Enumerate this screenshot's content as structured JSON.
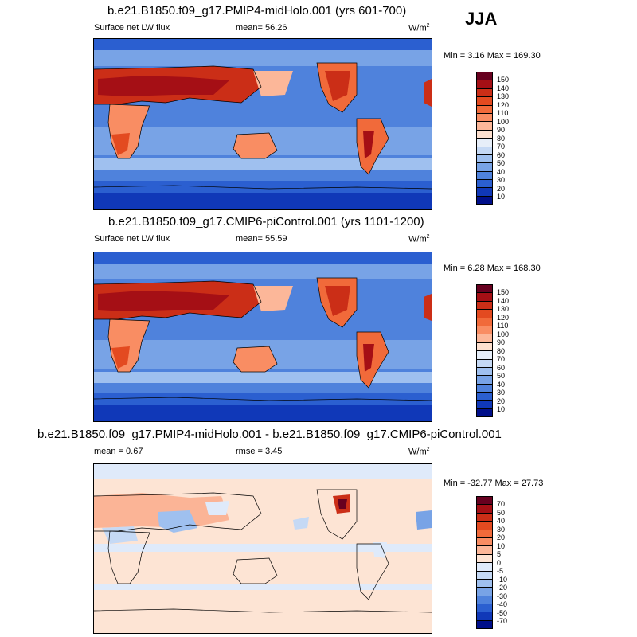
{
  "season": "JJA",
  "panels": [
    {
      "id": "midholo",
      "title": "b.e21.B1850.f09_g17.PMIP4-midHolo.001 (yrs 601-700)",
      "left_label": "Surface net LW flux",
      "center_label": "mean=  56.26",
      "units": "W/m",
      "units_sup": "2",
      "min_max": "Min =   3.16 Max = 169.30",
      "legend_levels": [
        "150",
        "140",
        "130",
        "120",
        "110",
        "100",
        "90",
        "80",
        "70",
        "60",
        "50",
        "40",
        "30",
        "20",
        "10"
      ]
    },
    {
      "id": "picontrol",
      "title": "b.e21.B1850.f09_g17.CMIP6-piControl.001 (yrs 1101-1200)",
      "left_label": "Surface net LW flux",
      "center_label": "mean=  55.59",
      "units": "W/m",
      "units_sup": "2",
      "min_max": "Min =   6.28 Max = 168.30",
      "legend_levels": [
        "150",
        "140",
        "130",
        "120",
        "110",
        "100",
        "90",
        "80",
        "70",
        "60",
        "50",
        "40",
        "30",
        "20",
        "10"
      ]
    },
    {
      "id": "difference",
      "title": "b.e21.B1850.f09_g17.PMIP4-midHolo.001 - b.e21.B1850.f09_g17.CMIP6-piControl.001",
      "left_label": "mean =   0.67",
      "center_label": "rmse =   3.45",
      "units": "W/m",
      "units_sup": "2",
      "min_max": "Min = -32.77 Max =  27.73",
      "legend_levels": [
        "70",
        "50",
        "40",
        "30",
        "20",
        "10",
        "5",
        "0",
        "-5",
        "-10",
        "-20",
        "-30",
        "-40",
        "-50",
        "-70"
      ]
    }
  ],
  "colors": {
    "abs_scale": [
      "#67001f",
      "#a50f15",
      "#cb2e17",
      "#e34a20",
      "#f16a3a",
      "#f98d63",
      "#fcb799",
      "#fde0cf",
      "#e6eef9",
      "#c5d9f5",
      "#9fc0ef",
      "#78a3e6",
      "#4f82dc",
      "#2b5fd0",
      "#1038b8",
      "#000f8a"
    ],
    "diff_scale": [
      "#67001f",
      "#a50f15",
      "#cb2e17",
      "#e34a20",
      "#f16a3a",
      "#f98d63",
      "#fcb799",
      "#fde4d4",
      "#dfeafa",
      "#c5d9f5",
      "#9fc0ef",
      "#78a3e6",
      "#4f82dc",
      "#2b5fd0",
      "#1038b8",
      "#000f8a"
    ]
  }
}
